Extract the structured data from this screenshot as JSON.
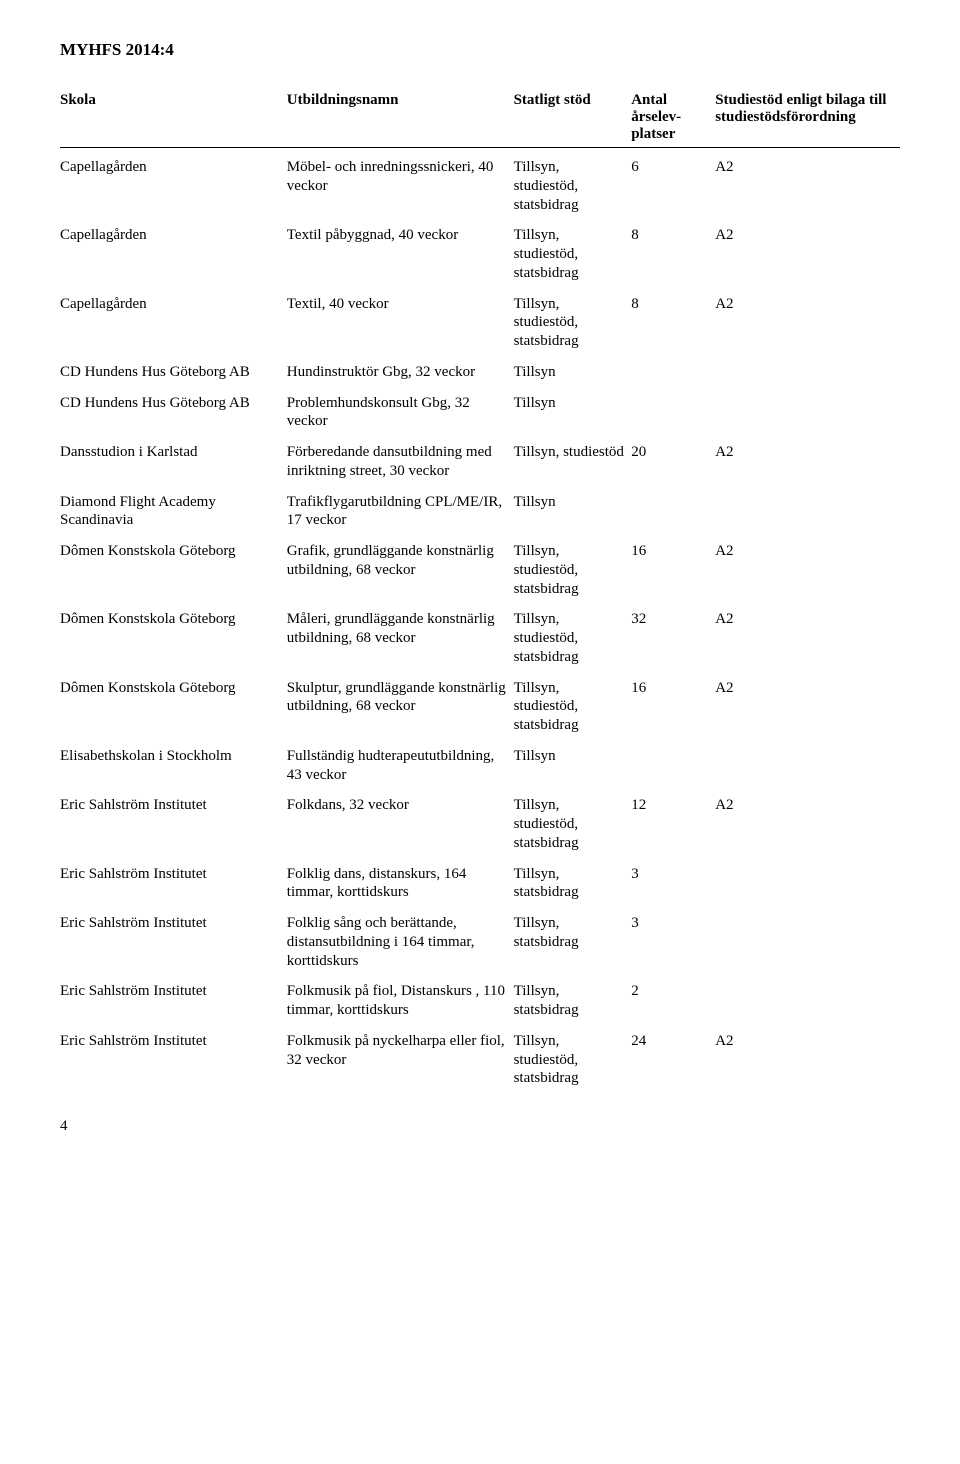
{
  "doc_title": "MYHFS 2014:4",
  "columns": {
    "skola": "Skola",
    "utbildningsnamn": "Utbildningsnamn",
    "statligt_stod": "Statligt stöd",
    "antal": "Antal årselev­platser",
    "studiestod": "Studiestöd enligt bilaga till studie­stödsförord­ning"
  },
  "rows": [
    {
      "skola": "Capellagården",
      "namn": "Möbel- och inrednings­snickeri, 40 veckor",
      "stod": "Tillsyn, studiestöd, statsbidrag",
      "antal": "6",
      "bilaga": "A2"
    },
    {
      "skola": "Capellagården",
      "namn": "Textil påbyggnad, 40 veckor",
      "stod": "Tillsyn, studiestöd, statsbidrag",
      "antal": "8",
      "bilaga": "A2"
    },
    {
      "skola": "Capellagården",
      "namn": "Textil, 40 veckor",
      "stod": "Tillsyn, studiestöd, statsbidrag",
      "antal": "8",
      "bilaga": "A2"
    },
    {
      "skola": "CD Hundens Hus Göteborg AB",
      "namn": "Hundinstruktör Gbg, 32 veckor",
      "stod": "Tillsyn",
      "antal": "",
      "bilaga": ""
    },
    {
      "skola": "CD Hundens Hus Göteborg AB",
      "namn": "Problemhundskonsult Gbg, 32 veckor",
      "stod": "Tillsyn",
      "antal": "",
      "bilaga": ""
    },
    {
      "skola": "Dansstudion i Karlstad",
      "namn": "Förberedande dansutbild­ning med inriktning street, 30 veckor",
      "stod": "Tillsyn, studiestöd",
      "antal": "20",
      "bilaga": "A2"
    },
    {
      "skola": "Diamond Flight Academy Scandinavia",
      "namn": "Trafikflygarutbildning CPL/ME/IR, 17 veckor",
      "stod": "Tillsyn",
      "antal": "",
      "bilaga": ""
    },
    {
      "skola": "Dômen Konstskola Göteborg",
      "namn": "Grafik, grundläggande konstnärlig utbildning, 68 veckor",
      "stod": "Tillsyn, studiestöd, statsbidrag",
      "antal": "16",
      "bilaga": "A2"
    },
    {
      "skola": "Dômen Konstskola Göteborg",
      "namn": "Måleri, grundläggande konstnärlig utbildning, 68 veckor",
      "stod": "Tillsyn, studiestöd, statsbidrag",
      "antal": "32",
      "bilaga": "A2"
    },
    {
      "skola": "Dômen Konstskola Göteborg",
      "namn": "Skulptur, grundläggande konstnärlig utbildning, 68 veckor",
      "stod": "Tillsyn, studiestöd, statsbidrag",
      "antal": "16",
      "bilaga": "A2"
    },
    {
      "skola": "Elisabethskolan i Stockholm",
      "namn": "Fullständig hudterapeut­utbildning, 43 veckor",
      "stod": "Tillsyn",
      "antal": "",
      "bilaga": ""
    },
    {
      "skola": "Eric Sahlström Institutet",
      "namn": "Folkdans, 32 veckor",
      "stod": "Tillsyn, studiestöd, statsbidrag",
      "antal": "12",
      "bilaga": "A2"
    },
    {
      "skola": "Eric Sahlström Institutet",
      "namn": "Folklig dans, distanskurs, 164 timmar, korttidskurs",
      "stod": "Tillsyn, statsbidrag",
      "antal": "3",
      "bilaga": ""
    },
    {
      "skola": "Eric Sahlström Institutet",
      "namn": "Folklig sång och berät­tande, distansutbildning i 164 timmar, korttidskurs",
      "stod": "Tillsyn, statsbidrag",
      "antal": "3",
      "bilaga": ""
    },
    {
      "skola": "Eric Sahlström Institutet",
      "namn": "Folkmusik på fiol, Distanskurs , 110 timmar, korttidskurs",
      "stod": "Tillsyn, statsbidrag",
      "antal": "2",
      "bilaga": ""
    },
    {
      "skola": "Eric Sahlström Institutet",
      "namn": "Folkmusik på nyckelharpa eller fiol, 32 veckor",
      "stod": "Tillsyn, studiestöd, statsbidrag",
      "antal": "24",
      "bilaga": "A2"
    }
  ],
  "page_number": "4"
}
